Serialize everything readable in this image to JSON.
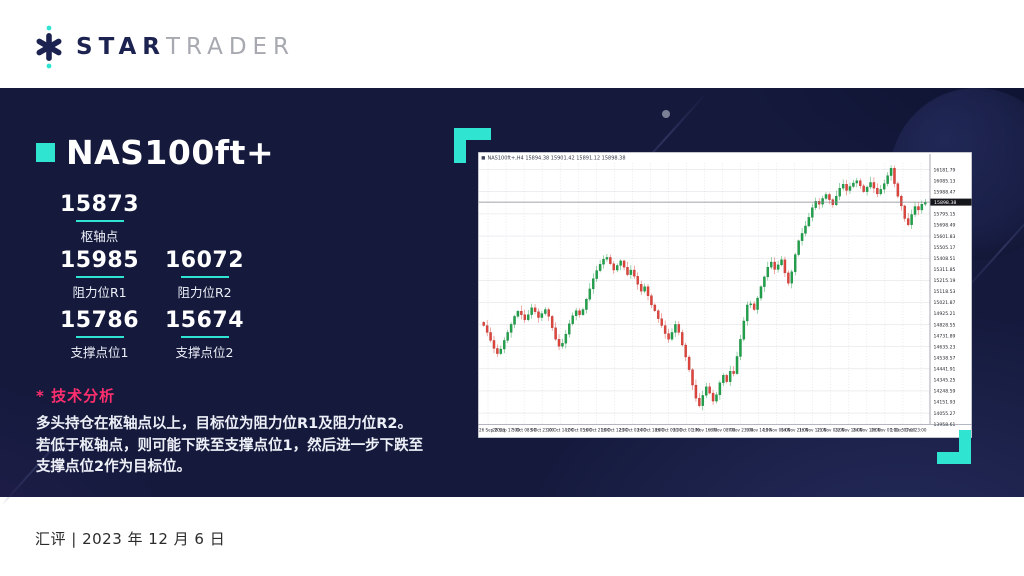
{
  "header": {
    "logo_star": "STAR",
    "logo_trader": "TRADER"
  },
  "main": {
    "title": "NAS100ft+",
    "pivots": [
      {
        "value": "15873",
        "label": "枢轴点"
      },
      {
        "value": "15985",
        "label": "阻力位R1"
      },
      {
        "value": "16072",
        "label": "阻力位R2"
      },
      {
        "value": "15786",
        "label": "支撑点位1"
      },
      {
        "value": "15674",
        "label": "支撑点位2"
      }
    ],
    "analysis": {
      "heading": "* 技术分析",
      "lines": [
        "多头持仓在枢轴点以上，目标位为阻力位R1及阻力位R2。",
        "若低于枢轴点，则可能下跌至支撑点位1，然后进一步下跌至",
        "支撑点位2作为目标位。"
      ]
    }
  },
  "footer": {
    "text": "汇评 | 2023 年 12 月 6 日"
  },
  "colors": {
    "accent_teal": "#2FE5D2",
    "accent_pink": "#FF2E6E",
    "navy_background": "#151A3D",
    "logo_navy": "#1D2350",
    "candle_up": "#1FA24A",
    "candle_down": "#E0443C"
  },
  "chart_data": {
    "type": "candlestick",
    "title": "NAS100ft+,H4  15894.38 15901.42 15891.12 15898.38",
    "symbol": "NAS100ft+",
    "timeframe": "H4",
    "current_bid": 15898.38,
    "y_axis": {
      "min": 13960,
      "max": 16240,
      "labels": [
        "16181.79",
        "16085.13",
        "15988.47",
        "15891.81",
        "15795.15",
        "15698.49",
        "15601.83",
        "15505.17",
        "15408.51",
        "15311.85",
        "15215.19",
        "15118.53",
        "15021.87",
        "14925.21",
        "14828.55",
        "14731.89",
        "14635.23",
        "14538.57",
        "14441.91",
        "14345.25",
        "14248.59",
        "14151.93",
        "14055.27",
        "13958.61"
      ]
    },
    "x_labels": [
      "26 Sep 2023",
      "28 Sep 17:00",
      "3 Oct 08:00",
      "5 Oct 23:00",
      "10 Oct 14:00",
      "12 Oct 05:00",
      "16 Oct 21:00",
      "18 Oct 12:00",
      "23 Oct 03:00",
      "24 Oct 18:00",
      "26 Oct 09:00",
      "31 Oct 01:00",
      "1 Nov 16:00",
      "6 Nov 08:00",
      "7 Nov 23:00",
      "9 Nov 14:00",
      "13 Nov 06:00",
      "14 Nov 21:00",
      "16 Nov 12:00",
      "21 Nov 03:00",
      "22 Nov 18:00",
      "24 Nov 10:00",
      "28 Nov 01:00",
      "1 Dec 07:00",
      "5 Dec 23:00"
    ],
    "closes": [
      14820,
      14760,
      14690,
      14620,
      14575,
      14615,
      14690,
      14760,
      14830,
      14900,
      14945,
      14915,
      14870,
      14915,
      14975,
      14940,
      14890,
      14925,
      14960,
      14900,
      14800,
      14700,
      14640,
      14665,
      14745,
      14835,
      14905,
      14950,
      14915,
      14960,
      15050,
      15140,
      15230,
      15300,
      15355,
      15400,
      15415,
      15360,
      15305,
      15345,
      15385,
      15330,
      15265,
      15305,
      15250,
      15180,
      15120,
      15160,
      15080,
      15000,
      14950,
      14880,
      14820,
      14750,
      14700,
      14760,
      14830,
      14760,
      14650,
      14545,
      14435,
      14300,
      14185,
      14120,
      14210,
      14285,
      14230,
      14160,
      14215,
      14320,
      14385,
      14330,
      14420,
      14400,
      14550,
      14700,
      14860,
      15000,
      15010,
      14960,
      15060,
      15160,
      15245,
      15330,
      15375,
      15310,
      15350,
      15395,
      15280,
      15190,
      15290,
      15440,
      15560,
      15625,
      15690,
      15765,
      15850,
      15905,
      15880,
      15930,
      15965,
      15920,
      15875,
      15950,
      16020,
      16055,
      16000,
      16035,
      16065,
      16085,
      16040,
      15990,
      16030,
      16070,
      16020,
      15970,
      16010,
      16060,
      16130,
      16195,
      16060,
      15950,
      15865,
      15755,
      15700,
      15790,
      15860,
      15830,
      15880,
      15898
    ]
  }
}
